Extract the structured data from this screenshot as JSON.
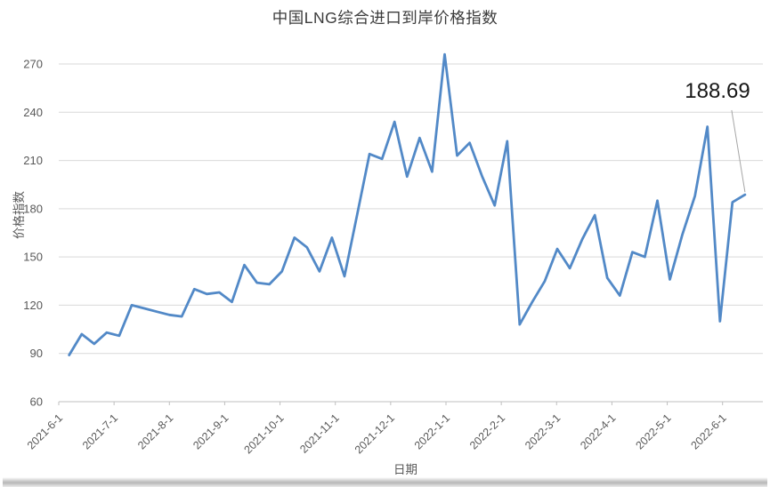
{
  "title": "中国LNG综合进口到岸价格指数",
  "annotation": {
    "label": "188.69"
  },
  "chart_data": {
    "type": "line",
    "title": "中国LNG综合进口到岸价格指数",
    "xlabel": "日期",
    "ylabel": "价格指数",
    "x_interval": "weekly",
    "x_tick_labels": [
      "2021-6-1",
      "2021-7-1",
      "2021-8-1",
      "2021-9-1",
      "2021-10-1",
      "2021-11-1",
      "2021-12-1",
      "2022-1-1",
      "2022-2-1",
      "2022-3-1",
      "2022-4-1",
      "2022-5-1",
      "2022-6-1"
    ],
    "yticks": [
      60,
      90,
      120,
      150,
      180,
      210,
      240,
      270
    ],
    "ylim": [
      60,
      270
    ],
    "grid": "horizontal",
    "legend": "none",
    "values": [
      89,
      102,
      96,
      103,
      101,
      120,
      118,
      116,
      114,
      113,
      130,
      127,
      128,
      122,
      145,
      134,
      133,
      141,
      162,
      156,
      141,
      162,
      138,
      176,
      214,
      211,
      234,
      200,
      224,
      203,
      276,
      213,
      221,
      200,
      182,
      222,
      108,
      122,
      135,
      155,
      143,
      161,
      176,
      137,
      126,
      153,
      150,
      185,
      136,
      164,
      188,
      231,
      110,
      184,
      188.69
    ],
    "last_value_label": "188.69"
  },
  "colors": {
    "line": "#5289c7",
    "grid": "#d9d9d9",
    "axis_line": "#bfbfbf",
    "axis_text": "#595959",
    "title_text": "#3b3b3b",
    "annotation_text": "#171717",
    "leader_line": "#a6a6a6"
  }
}
